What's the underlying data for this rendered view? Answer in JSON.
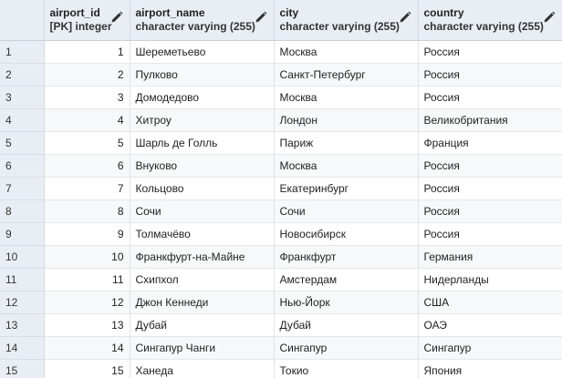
{
  "columns": [
    {
      "name": "airport_id",
      "type": "[PK] integer"
    },
    {
      "name": "airport_name",
      "type": "character varying (255)"
    },
    {
      "name": "city",
      "type": "character varying (255)"
    },
    {
      "name": "country",
      "type": "character varying (255)"
    }
  ],
  "icons": {
    "edit": "pencil-icon"
  },
  "rows": [
    {
      "n": "1",
      "id": "1",
      "name": "Шереметьево",
      "city": "Москва",
      "country": "Россия"
    },
    {
      "n": "2",
      "id": "2",
      "name": "Пулково",
      "city": "Санкт-Петербург",
      "country": "Россия"
    },
    {
      "n": "3",
      "id": "3",
      "name": "Домодедово",
      "city": "Москва",
      "country": "Россия"
    },
    {
      "n": "4",
      "id": "4",
      "name": "Хитроу",
      "city": "Лондон",
      "country": "Великобритания"
    },
    {
      "n": "5",
      "id": "5",
      "name": "Шарль де Голль",
      "city": "Париж",
      "country": "Франция"
    },
    {
      "n": "6",
      "id": "6",
      "name": "Внуково",
      "city": "Москва",
      "country": "Россия"
    },
    {
      "n": "7",
      "id": "7",
      "name": "Кольцово",
      "city": "Екатеринбург",
      "country": "Россия"
    },
    {
      "n": "8",
      "id": "8",
      "name": "Сочи",
      "city": "Сочи",
      "country": "Россия"
    },
    {
      "n": "9",
      "id": "9",
      "name": "Толмачёво",
      "city": "Новосибирск",
      "country": "Россия"
    },
    {
      "n": "10",
      "id": "10",
      "name": "Франкфурт-на-Майне",
      "city": "Франкфурт",
      "country": "Германия"
    },
    {
      "n": "11",
      "id": "11",
      "name": "Схипхол",
      "city": "Амстердам",
      "country": "Нидерланды"
    },
    {
      "n": "12",
      "id": "12",
      "name": "Джон Кеннеди",
      "city": "Нью-Йорк",
      "country": "США"
    },
    {
      "n": "13",
      "id": "13",
      "name": "Дубай",
      "city": "Дубай",
      "country": "ОАЭ"
    },
    {
      "n": "14",
      "id": "14",
      "name": "Сингапур Чанги",
      "city": "Сингапур",
      "country": "Сингапур"
    },
    {
      "n": "15",
      "id": "15",
      "name": "Ханеда",
      "city": "Токио",
      "country": "Япония"
    }
  ]
}
